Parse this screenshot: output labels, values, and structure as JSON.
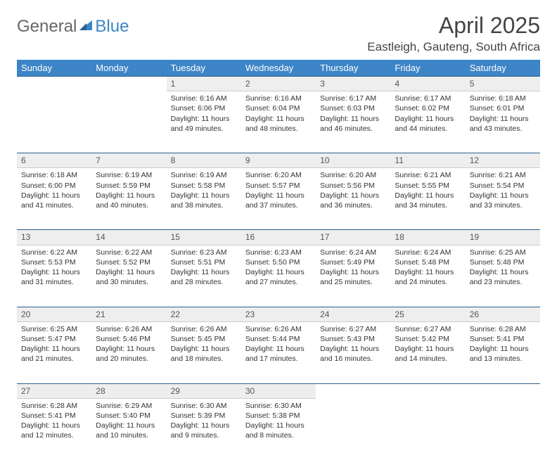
{
  "brand": {
    "general": "General",
    "blue": "Blue"
  },
  "title": "April 2025",
  "location": "Eastleigh, Gauteng, South Africa",
  "columns": [
    "Sunday",
    "Monday",
    "Tuesday",
    "Wednesday",
    "Thursday",
    "Friday",
    "Saturday"
  ],
  "colors": {
    "header_bg": "#3d85c6",
    "header_text": "#ffffff",
    "daynum_bg": "#eeeeee",
    "border_top": "#2b5f8e",
    "text": "#333333",
    "logo_gray": "#666666",
    "logo_blue": "#3d85c6"
  },
  "fonts": {
    "title_pt": 32,
    "location_pt": 17,
    "th_pt": 13,
    "daynum_pt": 12,
    "cell_pt": 10.5
  },
  "weeks": [
    {
      "nums": [
        "",
        "",
        "1",
        "2",
        "3",
        "4",
        "5"
      ],
      "cells": [
        null,
        null,
        {
          "sunrise": "Sunrise: 6:16 AM",
          "sunset": "Sunset: 6:06 PM",
          "day1": "Daylight: 11 hours",
          "day2": "and 49 minutes."
        },
        {
          "sunrise": "Sunrise: 6:16 AM",
          "sunset": "Sunset: 6:04 PM",
          "day1": "Daylight: 11 hours",
          "day2": "and 48 minutes."
        },
        {
          "sunrise": "Sunrise: 6:17 AM",
          "sunset": "Sunset: 6:03 PM",
          "day1": "Daylight: 11 hours",
          "day2": "and 46 minutes."
        },
        {
          "sunrise": "Sunrise: 6:17 AM",
          "sunset": "Sunset: 6:02 PM",
          "day1": "Daylight: 11 hours",
          "day2": "and 44 minutes."
        },
        {
          "sunrise": "Sunrise: 6:18 AM",
          "sunset": "Sunset: 6:01 PM",
          "day1": "Daylight: 11 hours",
          "day2": "and 43 minutes."
        }
      ]
    },
    {
      "nums": [
        "6",
        "7",
        "8",
        "9",
        "10",
        "11",
        "12"
      ],
      "cells": [
        {
          "sunrise": "Sunrise: 6:18 AM",
          "sunset": "Sunset: 6:00 PM",
          "day1": "Daylight: 11 hours",
          "day2": "and 41 minutes."
        },
        {
          "sunrise": "Sunrise: 6:19 AM",
          "sunset": "Sunset: 5:59 PM",
          "day1": "Daylight: 11 hours",
          "day2": "and 40 minutes."
        },
        {
          "sunrise": "Sunrise: 6:19 AM",
          "sunset": "Sunset: 5:58 PM",
          "day1": "Daylight: 11 hours",
          "day2": "and 38 minutes."
        },
        {
          "sunrise": "Sunrise: 6:20 AM",
          "sunset": "Sunset: 5:57 PM",
          "day1": "Daylight: 11 hours",
          "day2": "and 37 minutes."
        },
        {
          "sunrise": "Sunrise: 6:20 AM",
          "sunset": "Sunset: 5:56 PM",
          "day1": "Daylight: 11 hours",
          "day2": "and 36 minutes."
        },
        {
          "sunrise": "Sunrise: 6:21 AM",
          "sunset": "Sunset: 5:55 PM",
          "day1": "Daylight: 11 hours",
          "day2": "and 34 minutes."
        },
        {
          "sunrise": "Sunrise: 6:21 AM",
          "sunset": "Sunset: 5:54 PM",
          "day1": "Daylight: 11 hours",
          "day2": "and 33 minutes."
        }
      ]
    },
    {
      "nums": [
        "13",
        "14",
        "15",
        "16",
        "17",
        "18",
        "19"
      ],
      "cells": [
        {
          "sunrise": "Sunrise: 6:22 AM",
          "sunset": "Sunset: 5:53 PM",
          "day1": "Daylight: 11 hours",
          "day2": "and 31 minutes."
        },
        {
          "sunrise": "Sunrise: 6:22 AM",
          "sunset": "Sunset: 5:52 PM",
          "day1": "Daylight: 11 hours",
          "day2": "and 30 minutes."
        },
        {
          "sunrise": "Sunrise: 6:23 AM",
          "sunset": "Sunset: 5:51 PM",
          "day1": "Daylight: 11 hours",
          "day2": "and 28 minutes."
        },
        {
          "sunrise": "Sunrise: 6:23 AM",
          "sunset": "Sunset: 5:50 PM",
          "day1": "Daylight: 11 hours",
          "day2": "and 27 minutes."
        },
        {
          "sunrise": "Sunrise: 6:24 AM",
          "sunset": "Sunset: 5:49 PM",
          "day1": "Daylight: 11 hours",
          "day2": "and 25 minutes."
        },
        {
          "sunrise": "Sunrise: 6:24 AM",
          "sunset": "Sunset: 5:48 PM",
          "day1": "Daylight: 11 hours",
          "day2": "and 24 minutes."
        },
        {
          "sunrise": "Sunrise: 6:25 AM",
          "sunset": "Sunset: 5:48 PM",
          "day1": "Daylight: 11 hours",
          "day2": "and 23 minutes."
        }
      ]
    },
    {
      "nums": [
        "20",
        "21",
        "22",
        "23",
        "24",
        "25",
        "26"
      ],
      "cells": [
        {
          "sunrise": "Sunrise: 6:25 AM",
          "sunset": "Sunset: 5:47 PM",
          "day1": "Daylight: 11 hours",
          "day2": "and 21 minutes."
        },
        {
          "sunrise": "Sunrise: 6:26 AM",
          "sunset": "Sunset: 5:46 PM",
          "day1": "Daylight: 11 hours",
          "day2": "and 20 minutes."
        },
        {
          "sunrise": "Sunrise: 6:26 AM",
          "sunset": "Sunset: 5:45 PM",
          "day1": "Daylight: 11 hours",
          "day2": "and 18 minutes."
        },
        {
          "sunrise": "Sunrise: 6:26 AM",
          "sunset": "Sunset: 5:44 PM",
          "day1": "Daylight: 11 hours",
          "day2": "and 17 minutes."
        },
        {
          "sunrise": "Sunrise: 6:27 AM",
          "sunset": "Sunset: 5:43 PM",
          "day1": "Daylight: 11 hours",
          "day2": "and 16 minutes."
        },
        {
          "sunrise": "Sunrise: 6:27 AM",
          "sunset": "Sunset: 5:42 PM",
          "day1": "Daylight: 11 hours",
          "day2": "and 14 minutes."
        },
        {
          "sunrise": "Sunrise: 6:28 AM",
          "sunset": "Sunset: 5:41 PM",
          "day1": "Daylight: 11 hours",
          "day2": "and 13 minutes."
        }
      ]
    },
    {
      "nums": [
        "27",
        "28",
        "29",
        "30",
        "",
        "",
        ""
      ],
      "cells": [
        {
          "sunrise": "Sunrise: 6:28 AM",
          "sunset": "Sunset: 5:41 PM",
          "day1": "Daylight: 11 hours",
          "day2": "and 12 minutes."
        },
        {
          "sunrise": "Sunrise: 6:29 AM",
          "sunset": "Sunset: 5:40 PM",
          "day1": "Daylight: 11 hours",
          "day2": "and 10 minutes."
        },
        {
          "sunrise": "Sunrise: 6:30 AM",
          "sunset": "Sunset: 5:39 PM",
          "day1": "Daylight: 11 hours",
          "day2": "and 9 minutes."
        },
        {
          "sunrise": "Sunrise: 6:30 AM",
          "sunset": "Sunset: 5:38 PM",
          "day1": "Daylight: 11 hours",
          "day2": "and 8 minutes."
        },
        null,
        null,
        null
      ]
    }
  ]
}
